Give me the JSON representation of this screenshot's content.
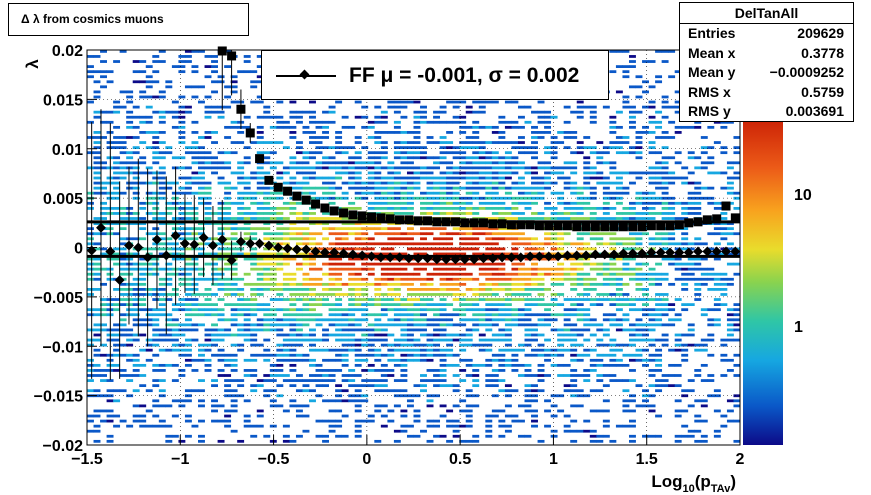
{
  "title": "Δ λ from cosmics muons",
  "stats": {
    "name": "DelTanAll",
    "rows": [
      {
        "label": "Entries",
        "value": "209629"
      },
      {
        "label": "Mean x",
        "value": "0.3778"
      },
      {
        "label": "Mean y",
        "value": "−0.0009252"
      },
      {
        "label": "RMS x",
        "value": "0.5759"
      },
      {
        "label": "RMS y",
        "value": "0.003691"
      }
    ]
  },
  "legend": {
    "label": "FF μ = -0.001, σ =   0.002"
  },
  "colors": {
    "palette": [
      "#0c0a88",
      "#0a58c8",
      "#16a7e1",
      "#2fc6a6",
      "#8ad34e",
      "#e9dc2c",
      "#f8a21e",
      "#ec5b18",
      "#cc2206"
    ]
  },
  "chart_data": {
    "type": "heatmap",
    "xlabel": "Log10(pTAv)",
    "ylabel": "λ",
    "xlim": [
      -1.5,
      2
    ],
    "ylim": [
      -0.02,
      0.02
    ],
    "x_ticks": [
      "−1.5",
      "−1",
      "−0.5",
      "0",
      "0.5",
      "1",
      "1.5",
      "2"
    ],
    "y_ticks": [
      "0.02",
      "0.015",
      "0.01",
      "0.005",
      "0",
      "−0.005",
      "−0.01",
      "−0.015",
      "−0.02"
    ],
    "z_scale": "log",
    "z_ticks": [
      "10",
      "1"
    ],
    "grid": true,
    "series": [
      {
        "marker": "diamond",
        "x": [
          -1.475,
          -1.425,
          -1.375,
          -1.325,
          -1.275,
          -1.225,
          -1.175,
          -1.125,
          -1.075,
          -1.025,
          -0.975,
          -0.925,
          -0.875,
          -0.825,
          -0.775,
          -0.725,
          -0.675,
          -0.625,
          -0.575,
          -0.525,
          -0.475,
          -0.425,
          -0.375,
          -0.325,
          -0.275,
          -0.225,
          -0.175,
          -0.125,
          -0.075,
          -0.025,
          0.025,
          0.075,
          0.125,
          0.175,
          0.225,
          0.275,
          0.325,
          0.375,
          0.425,
          0.475,
          0.525,
          0.575,
          0.625,
          0.675,
          0.725,
          0.775,
          0.825,
          0.875,
          0.925,
          0.975,
          1.025,
          1.075,
          1.125,
          1.175,
          1.225,
          1.275,
          1.325,
          1.375,
          1.425,
          1.475,
          1.525,
          1.575,
          1.625,
          1.675,
          1.725,
          1.775,
          1.825,
          1.875,
          1.925,
          1.975
        ],
        "y": [
          -0.0003,
          0.002,
          -0.0004,
          -0.0033,
          0.0002,
          0,
          -0.001,
          0.0008,
          -0.0008,
          0.0012,
          0.0004,
          0.0003,
          0.001,
          0.0002,
          0.0008,
          -0.0013,
          0.0006,
          0.0004,
          0.0004,
          0.0002,
          0,
          -0.0001,
          -0.0002,
          -0.0002,
          -0.0004,
          -0.0005,
          -0.0005,
          -0.0006,
          -0.0007,
          -0.0008,
          -0.0009,
          -0.001,
          -0.001,
          -0.001,
          -0.0011,
          -0.0011,
          -0.0011,
          -0.0012,
          -0.0012,
          -0.0012,
          -0.0012,
          -0.0012,
          -0.0011,
          -0.0011,
          -0.001,
          -0.001,
          -0.001,
          -0.0009,
          -0.0009,
          -0.0009,
          -0.0009,
          -0.0008,
          -0.0008,
          -0.0008,
          -0.0007,
          -0.0007,
          -0.0007,
          -0.0006,
          -0.0006,
          -0.0006,
          -0.0005,
          -0.0005,
          -0.0005,
          -0.0005,
          -0.0005,
          -0.0004,
          -0.0004,
          -0.0004,
          -0.0004,
          -0.0004
        ],
        "err": [
          0.013,
          0.012,
          0.013,
          0.01,
          0.008,
          0.009,
          0.009,
          0.007,
          0.008,
          0.007,
          0.005,
          0.005,
          0.004,
          0.004,
          0.004,
          0.002,
          0.001,
          0.0008,
          0.0005,
          0.0004,
          0.0003,
          0.0003,
          0,
          0,
          0,
          0,
          0,
          0,
          0,
          0,
          0,
          0,
          0,
          0,
          0,
          0,
          0,
          0,
          0,
          0,
          0,
          0,
          0,
          0,
          0,
          0,
          0,
          0,
          0,
          0,
          0,
          0,
          0,
          0,
          0,
          0,
          0,
          0,
          0,
          0,
          0,
          0,
          0,
          0,
          0,
          0,
          0,
          0,
          0,
          0
        ]
      },
      {
        "marker": "square",
        "x": [
          -0.775,
          -0.725,
          -0.675,
          -0.625,
          -0.575,
          -0.525,
          -0.475,
          -0.425,
          -0.375,
          -0.325,
          -0.275,
          -0.225,
          -0.175,
          -0.125,
          -0.075,
          -0.025,
          0.025,
          0.075,
          0.125,
          0.175,
          0.225,
          0.275,
          0.325,
          0.375,
          0.425,
          0.475,
          0.525,
          0.575,
          0.625,
          0.675,
          0.725,
          0.775,
          0.825,
          0.875,
          0.925,
          0.975,
          1.025,
          1.075,
          1.125,
          1.175,
          1.225,
          1.275,
          1.325,
          1.375,
          1.425,
          1.475,
          1.525,
          1.575,
          1.625,
          1.675,
          1.725,
          1.775,
          1.825,
          1.875,
          1.925,
          1.975
        ],
        "y": [
          0.0199,
          0.0194,
          0.014,
          0.0116,
          0.009,
          0.0068,
          0.0061,
          0.0057,
          0.0052,
          0.0048,
          0.0044,
          0.004,
          0.0037,
          0.0035,
          0.0033,
          0.0032,
          0.0031,
          0.003,
          0.0029,
          0.0028,
          0.0028,
          0.0027,
          0.0027,
          0.0026,
          0.0026,
          0.0026,
          0.0025,
          0.0025,
          0.0025,
          0.0024,
          0.0024,
          0.0023,
          0.0023,
          0.0023,
          0.0022,
          0.0022,
          0.0022,
          0.0022,
          0.0021,
          0.0021,
          0.0021,
          0.0021,
          0.0021,
          0.0021,
          0.0021,
          0.0021,
          0.0022,
          0.0022,
          0.0022,
          0.0023,
          0.0025,
          0.0026,
          0.0028,
          0.0029,
          0.0042,
          0.003
        ],
        "err": [
          0.006,
          0.004,
          0.002,
          0.001,
          0,
          0,
          0,
          0,
          0,
          0,
          0,
          0,
          0,
          0,
          0,
          0,
          0,
          0,
          0,
          0,
          0,
          0,
          0,
          0,
          0,
          0,
          0,
          0,
          0,
          0,
          0,
          0,
          0,
          0,
          0,
          0,
          0,
          0,
          0,
          0,
          0,
          0,
          0,
          0,
          0,
          0,
          0,
          0,
          0,
          0,
          0,
          0,
          0,
          0,
          0,
          0
        ]
      }
    ],
    "fit_lines": [
      {
        "label": "upper",
        "y": 0.0026
      },
      {
        "label": "lower",
        "y": -0.0009
      }
    ]
  }
}
